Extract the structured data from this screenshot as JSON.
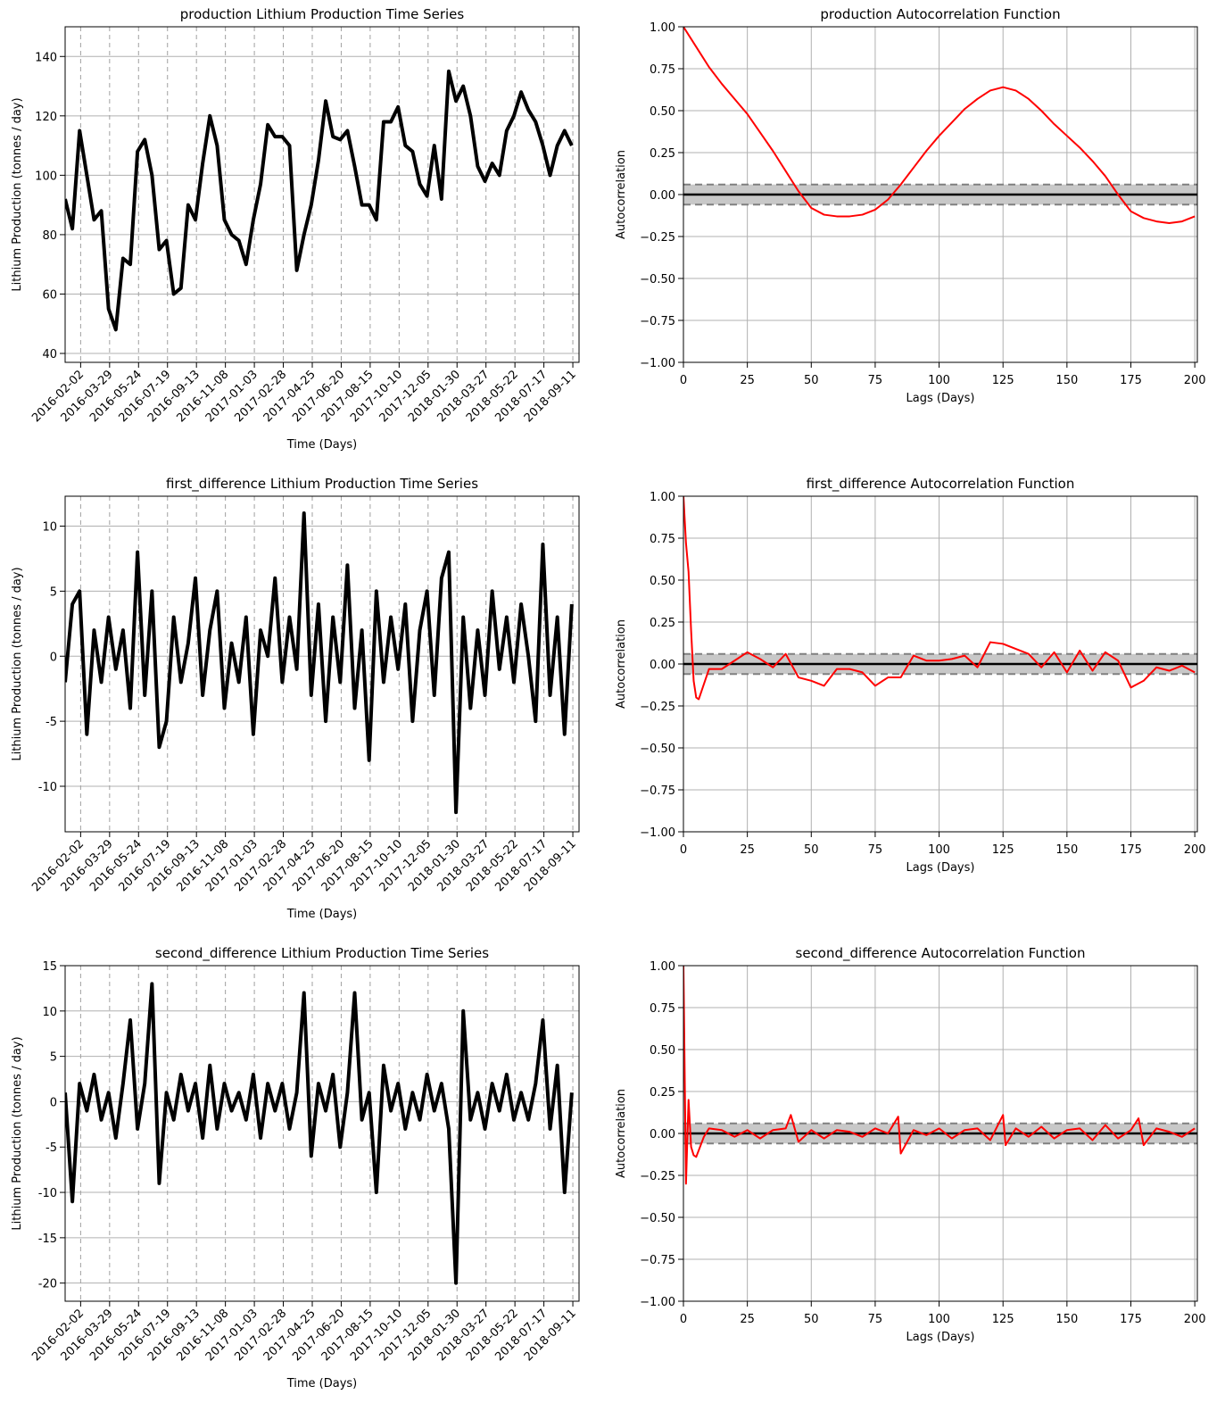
{
  "chart_data": [
    {
      "type": "line",
      "title": "production Lithium Production Time Series",
      "xlabel": "Time (Days)",
      "ylabel": "Lithium Production (tonnes / day)",
      "color": "#000000",
      "line_width": 4,
      "x": [
        "2016-01-03",
        "2016-01-17",
        "2016-01-31",
        "2016-02-14",
        "2016-02-28",
        "2016-03-13",
        "2016-03-27",
        "2016-04-10",
        "2016-04-24",
        "2016-05-08",
        "2016-05-22",
        "2016-06-05",
        "2016-06-19",
        "2016-07-03",
        "2016-07-17",
        "2016-07-31",
        "2016-08-14",
        "2016-08-28",
        "2016-09-11",
        "2016-09-25",
        "2016-10-09",
        "2016-10-23",
        "2016-11-06",
        "2016-11-20",
        "2016-12-04",
        "2016-12-18",
        "2017-01-01",
        "2017-01-15",
        "2017-01-29",
        "2017-02-12",
        "2017-02-26",
        "2017-03-12",
        "2017-03-26",
        "2017-04-09",
        "2017-04-23",
        "2017-05-07",
        "2017-05-21",
        "2017-06-04",
        "2017-06-18",
        "2017-07-02",
        "2017-07-16",
        "2017-07-30",
        "2017-08-13",
        "2017-08-27",
        "2017-09-10",
        "2017-09-24",
        "2017-10-08",
        "2017-10-22",
        "2017-11-05",
        "2017-11-19",
        "2017-12-03",
        "2017-12-17",
        "2017-12-31",
        "2018-01-14",
        "2018-01-28",
        "2018-02-11",
        "2018-02-25",
        "2018-03-11",
        "2018-03-25",
        "2018-04-08",
        "2018-04-22",
        "2018-05-06",
        "2018-05-20",
        "2018-06-03",
        "2018-06-17",
        "2018-07-01",
        "2018-07-15",
        "2018-07-29",
        "2018-08-12",
        "2018-08-26",
        "2018-09-09"
      ],
      "values": [
        92,
        82,
        115,
        100,
        85,
        88,
        55,
        48,
        72,
        70,
        108,
        112,
        100,
        75,
        78,
        60,
        62,
        90,
        85,
        104,
        120,
        110,
        85,
        80,
        78,
        70,
        85,
        97,
        117,
        113,
        113,
        110,
        68,
        80,
        90,
        105,
        125,
        113,
        112,
        115,
        103,
        90,
        90,
        85,
        118,
        118,
        123,
        110,
        108,
        97,
        93,
        110,
        92,
        135,
        125,
        130,
        120,
        103,
        98,
        104,
        100,
        115,
        120,
        128,
        122,
        118,
        110,
        100,
        110,
        115,
        110
      ],
      "xlim": [
        "2016-01-03",
        "2018-09-23"
      ],
      "xticks": [
        "2016-02-02",
        "2016-03-29",
        "2016-05-24",
        "2016-07-19",
        "2016-09-13",
        "2016-11-08",
        "2017-01-03",
        "2017-02-28",
        "2017-04-25",
        "2017-06-20",
        "2017-08-15",
        "2017-10-10",
        "2017-12-05",
        "2018-01-30",
        "2018-03-27",
        "2018-05-22",
        "2018-07-17",
        "2018-09-11"
      ],
      "ylim": [
        37,
        150
      ],
      "yticks": [
        40,
        60,
        80,
        100,
        120,
        140
      ],
      "grid": true
    },
    {
      "type": "acf",
      "title": "production Autocorrelation Function",
      "xlabel": "Lags (Days)",
      "ylabel": "Autocorrelation",
      "color": "#ff0000",
      "line_width": 2,
      "confidence": 0.06,
      "x": [
        0,
        5,
        10,
        15,
        20,
        25,
        30,
        35,
        40,
        45,
        50,
        55,
        60,
        65,
        70,
        75,
        80,
        85,
        90,
        95,
        100,
        105,
        110,
        115,
        120,
        125,
        130,
        135,
        140,
        145,
        150,
        155,
        160,
        165,
        170,
        175,
        180,
        185,
        190,
        195,
        200
      ],
      "values": [
        1.0,
        0.88,
        0.76,
        0.66,
        0.57,
        0.48,
        0.37,
        0.26,
        0.14,
        0.02,
        -0.08,
        -0.12,
        -0.13,
        -0.13,
        -0.12,
        -0.09,
        -0.03,
        0.06,
        0.16,
        0.26,
        0.35,
        0.43,
        0.51,
        0.57,
        0.62,
        0.64,
        0.62,
        0.57,
        0.5,
        0.42,
        0.35,
        0.28,
        0.2,
        0.11,
        0.0,
        -0.1,
        -0.14,
        -0.16,
        -0.17,
        -0.16,
        -0.13
      ],
      "xlim": [
        0,
        201
      ],
      "xticks": [
        0,
        25,
        50,
        75,
        100,
        125,
        150,
        175,
        200
      ],
      "ylim": [
        -1,
        1
      ],
      "yticks": [
        {
          "value": -1,
          "label": "−1.00"
        },
        {
          "value": -0.75,
          "label": "−0.75"
        },
        {
          "value": -0.5,
          "label": "−0.50"
        },
        {
          "value": -0.25,
          "label": "−0.25"
        },
        {
          "value": 0,
          "label": "0.00"
        },
        {
          "value": 0.25,
          "label": "0.25"
        },
        {
          "value": 0.5,
          "label": "0.50"
        },
        {
          "value": 0.75,
          "label": "0.75"
        },
        {
          "value": 1,
          "label": "1.00"
        }
      ],
      "grid": true
    },
    {
      "type": "line",
      "title": "first_difference Lithium Production Time Series",
      "xlabel": "Time (Days)",
      "ylabel": "Lithium Production (tonnes / day)",
      "color": "#000000",
      "line_width": 4,
      "x": [
        "2016-01-03",
        "2016-01-17",
        "2016-01-31",
        "2016-02-14",
        "2016-02-28",
        "2016-03-13",
        "2016-03-27",
        "2016-04-10",
        "2016-04-24",
        "2016-05-08",
        "2016-05-22",
        "2016-06-05",
        "2016-06-19",
        "2016-07-03",
        "2016-07-17",
        "2016-07-31",
        "2016-08-14",
        "2016-08-28",
        "2016-09-11",
        "2016-09-25",
        "2016-10-09",
        "2016-10-23",
        "2016-11-06",
        "2016-11-20",
        "2016-12-04",
        "2016-12-18",
        "2017-01-01",
        "2017-01-15",
        "2017-01-29",
        "2017-02-12",
        "2017-02-26",
        "2017-03-12",
        "2017-03-26",
        "2017-04-09",
        "2017-04-23",
        "2017-05-07",
        "2017-05-21",
        "2017-06-04",
        "2017-06-18",
        "2017-07-02",
        "2017-07-16",
        "2017-07-30",
        "2017-08-13",
        "2017-08-27",
        "2017-09-10",
        "2017-09-24",
        "2017-10-08",
        "2017-10-22",
        "2017-11-05",
        "2017-11-19",
        "2017-12-03",
        "2017-12-17",
        "2017-12-31",
        "2018-01-14",
        "2018-01-28",
        "2018-02-11",
        "2018-02-25",
        "2018-03-11",
        "2018-03-25",
        "2018-04-08",
        "2018-04-22",
        "2018-05-06",
        "2018-05-20",
        "2018-06-03",
        "2018-06-17",
        "2018-07-01",
        "2018-07-15",
        "2018-07-29",
        "2018-08-12",
        "2018-08-26",
        "2018-09-09"
      ],
      "values": [
        -2,
        4,
        5,
        -6,
        2,
        -2,
        3,
        -1,
        2,
        -4,
        8,
        -3,
        5,
        -7,
        -5,
        3,
        -2,
        1,
        6,
        -3,
        2,
        5,
        -4,
        1,
        -2,
        3,
        -6,
        2,
        0,
        6,
        -2,
        3,
        -1,
        11,
        -3,
        4,
        -5,
        3,
        -2,
        7,
        -4,
        2,
        -8,
        5,
        -2,
        3,
        -1,
        4,
        -5,
        2,
        5,
        -3,
        6,
        8,
        -12,
        3,
        -4,
        2,
        -3,
        5,
        -1,
        3,
        -2,
        4,
        0,
        -5,
        8.6,
        -3,
        3,
        -6,
        4
      ],
      "xlim": [
        "2016-01-03",
        "2018-09-23"
      ],
      "xticks": [
        "2016-02-02",
        "2016-03-29",
        "2016-05-24",
        "2016-07-19",
        "2016-09-13",
        "2016-11-08",
        "2017-01-03",
        "2017-02-28",
        "2017-04-25",
        "2017-06-20",
        "2017-08-15",
        "2017-10-10",
        "2017-12-05",
        "2018-01-30",
        "2018-03-27",
        "2018-05-22",
        "2018-07-17",
        "2018-09-11"
      ],
      "ylim": [
        -13.5,
        12.3
      ],
      "yticks": [
        -10,
        -5,
        0,
        5,
        10
      ],
      "grid": true
    },
    {
      "type": "acf",
      "title": "first_difference Autocorrelation Function",
      "xlabel": "Lags (Days)",
      "ylabel": "Autocorrelation",
      "color": "#ff0000",
      "line_width": 2,
      "confidence": 0.06,
      "x": [
        0,
        1,
        2,
        3,
        4,
        5,
        6,
        8,
        10,
        15,
        20,
        25,
        30,
        35,
        40,
        45,
        50,
        55,
        60,
        65,
        70,
        75,
        80,
        85,
        90,
        95,
        100,
        105,
        110,
        115,
        120,
        125,
        130,
        135,
        140,
        145,
        150,
        155,
        160,
        165,
        170,
        175,
        180,
        185,
        190,
        195,
        200
      ],
      "values": [
        1,
        0.72,
        0.55,
        0.2,
        -0.1,
        -0.2,
        -0.21,
        -0.12,
        -0.03,
        -0.03,
        0.02,
        0.07,
        0.03,
        -0.02,
        0.06,
        -0.08,
        -0.1,
        -0.13,
        -0.03,
        -0.03,
        -0.05,
        -0.13,
        -0.08,
        -0.08,
        0.05,
        0.02,
        0.02,
        0.03,
        0.05,
        -0.02,
        0.13,
        0.12,
        0.09,
        0.06,
        -0.02,
        0.07,
        -0.05,
        0.08,
        -0.04,
        0.07,
        0.02,
        -0.14,
        -0.1,
        -0.02,
        -0.04,
        -0.01,
        -0.05
      ],
      "xlim": [
        0,
        201
      ],
      "xticks": [
        0,
        25,
        50,
        75,
        100,
        125,
        150,
        175,
        200
      ],
      "ylim": [
        -1,
        1
      ],
      "yticks": [
        {
          "value": -1,
          "label": "−1.00"
        },
        {
          "value": -0.75,
          "label": "−0.75"
        },
        {
          "value": -0.5,
          "label": "−0.50"
        },
        {
          "value": -0.25,
          "label": "−0.25"
        },
        {
          "value": 0,
          "label": "0.00"
        },
        {
          "value": 0.25,
          "label": "0.25"
        },
        {
          "value": 0.5,
          "label": "0.50"
        },
        {
          "value": 0.75,
          "label": "0.75"
        },
        {
          "value": 1,
          "label": "1.00"
        }
      ],
      "grid": true
    },
    {
      "type": "line",
      "title": "second_difference Lithium Production Time Series",
      "xlabel": "Time (Days)",
      "ylabel": "Lithium Production (tonnes / day)",
      "color": "#000000",
      "line_width": 4,
      "x": [
        "2016-01-03",
        "2016-01-17",
        "2016-01-31",
        "2016-02-14",
        "2016-02-28",
        "2016-03-13",
        "2016-03-27",
        "2016-04-10",
        "2016-04-24",
        "2016-05-08",
        "2016-05-22",
        "2016-06-05",
        "2016-06-19",
        "2016-07-03",
        "2016-07-17",
        "2016-07-31",
        "2016-08-14",
        "2016-08-28",
        "2016-09-11",
        "2016-09-25",
        "2016-10-09",
        "2016-10-23",
        "2016-11-06",
        "2016-11-20",
        "2016-12-04",
        "2016-12-18",
        "2017-01-01",
        "2017-01-15",
        "2017-01-29",
        "2017-02-12",
        "2017-02-26",
        "2017-03-12",
        "2017-03-26",
        "2017-04-09",
        "2017-04-23",
        "2017-05-07",
        "2017-05-21",
        "2017-06-04",
        "2017-06-18",
        "2017-07-02",
        "2017-07-16",
        "2017-07-30",
        "2017-08-13",
        "2017-08-27",
        "2017-09-10",
        "2017-09-24",
        "2017-10-08",
        "2017-10-22",
        "2017-11-05",
        "2017-11-19",
        "2017-12-03",
        "2017-12-17",
        "2017-12-31",
        "2018-01-14",
        "2018-01-28",
        "2018-02-11",
        "2018-02-25",
        "2018-03-11",
        "2018-03-25",
        "2018-04-08",
        "2018-04-22",
        "2018-05-06",
        "2018-05-20",
        "2018-06-03",
        "2018-06-17",
        "2018-07-01",
        "2018-07-15",
        "2018-07-29",
        "2018-08-12",
        "2018-08-26",
        "2018-09-09"
      ],
      "values": [
        1,
        -11,
        2,
        -1,
        3,
        -2,
        1,
        -4,
        2,
        9,
        -3,
        2,
        13,
        -9,
        1,
        -2,
        3,
        -1,
        2,
        -4,
        4,
        -3,
        2,
        -1,
        1,
        -2,
        3,
        -4,
        2,
        -1,
        2,
        -3,
        1,
        12,
        -6,
        2,
        -1,
        3,
        -5,
        1,
        12,
        -2,
        1,
        -10,
        4,
        -1,
        2,
        -3,
        1,
        -2,
        3,
        -1,
        2,
        -3,
        -20,
        10,
        -2,
        1,
        -3,
        2,
        -1,
        3,
        -2,
        1,
        -2,
        2,
        9,
        -3,
        4,
        -10,
        1
      ],
      "xlim": [
        "2016-01-03",
        "2018-09-23"
      ],
      "xticks": [
        "2016-02-02",
        "2016-03-29",
        "2016-05-24",
        "2016-07-19",
        "2016-09-13",
        "2016-11-08",
        "2017-01-03",
        "2017-02-28",
        "2017-04-25",
        "2017-06-20",
        "2017-08-15",
        "2017-10-10",
        "2017-12-05",
        "2018-01-30",
        "2018-03-27",
        "2018-05-22",
        "2018-07-17",
        "2018-09-11"
      ],
      "ylim": [
        -22,
        15
      ],
      "yticks": [
        -20,
        -15,
        -10,
        -5,
        0,
        5,
        10,
        15
      ],
      "grid": true
    },
    {
      "type": "acf",
      "title": "second_difference Autocorrelation Function",
      "xlabel": "Lags (Days)",
      "ylabel": "Autocorrelation",
      "color": "#ff0000",
      "line_width": 2,
      "confidence": 0.06,
      "x": [
        0,
        1,
        2,
        3,
        4,
        5,
        6,
        8,
        10,
        15,
        20,
        25,
        30,
        35,
        40,
        42,
        45,
        50,
        55,
        60,
        65,
        70,
        75,
        80,
        84,
        85,
        90,
        95,
        100,
        105,
        110,
        115,
        120,
        125,
        126,
        130,
        135,
        140,
        145,
        150,
        155,
        160,
        165,
        170,
        175,
        178,
        180,
        185,
        190,
        195,
        200
      ],
      "values": [
        1,
        -0.3,
        0.2,
        -0.08,
        -0.13,
        -0.14,
        -0.1,
        -0.02,
        0.03,
        0.02,
        -0.02,
        0.02,
        -0.03,
        0.02,
        0.03,
        0.11,
        -0.05,
        0.02,
        -0.03,
        0.02,
        0.01,
        -0.02,
        0.03,
        0.0,
        0.1,
        -0.12,
        0.02,
        -0.01,
        0.03,
        -0.03,
        0.02,
        0.03,
        -0.04,
        0.11,
        -0.07,
        0.03,
        -0.02,
        0.04,
        -0.03,
        0.02,
        0.03,
        -0.04,
        0.05,
        -0.03,
        0.02,
        0.09,
        -0.07,
        0.03,
        0.01,
        -0.02,
        0.03
      ],
      "xlim": [
        0,
        201
      ],
      "xticks": [
        0,
        25,
        50,
        75,
        100,
        125,
        150,
        175,
        200
      ],
      "ylim": [
        -1,
        1
      ],
      "yticks": [
        {
          "value": -1,
          "label": "−1.00"
        },
        {
          "value": -0.75,
          "label": "−0.75"
        },
        {
          "value": -0.5,
          "label": "−0.50"
        },
        {
          "value": -0.25,
          "label": "−0.25"
        },
        {
          "value": 0,
          "label": "0.00"
        },
        {
          "value": 0.25,
          "label": "0.25"
        },
        {
          "value": 0.5,
          "label": "0.50"
        },
        {
          "value": 0.75,
          "label": "0.75"
        },
        {
          "value": 1,
          "label": "1.00"
        }
      ],
      "grid": true
    }
  ]
}
